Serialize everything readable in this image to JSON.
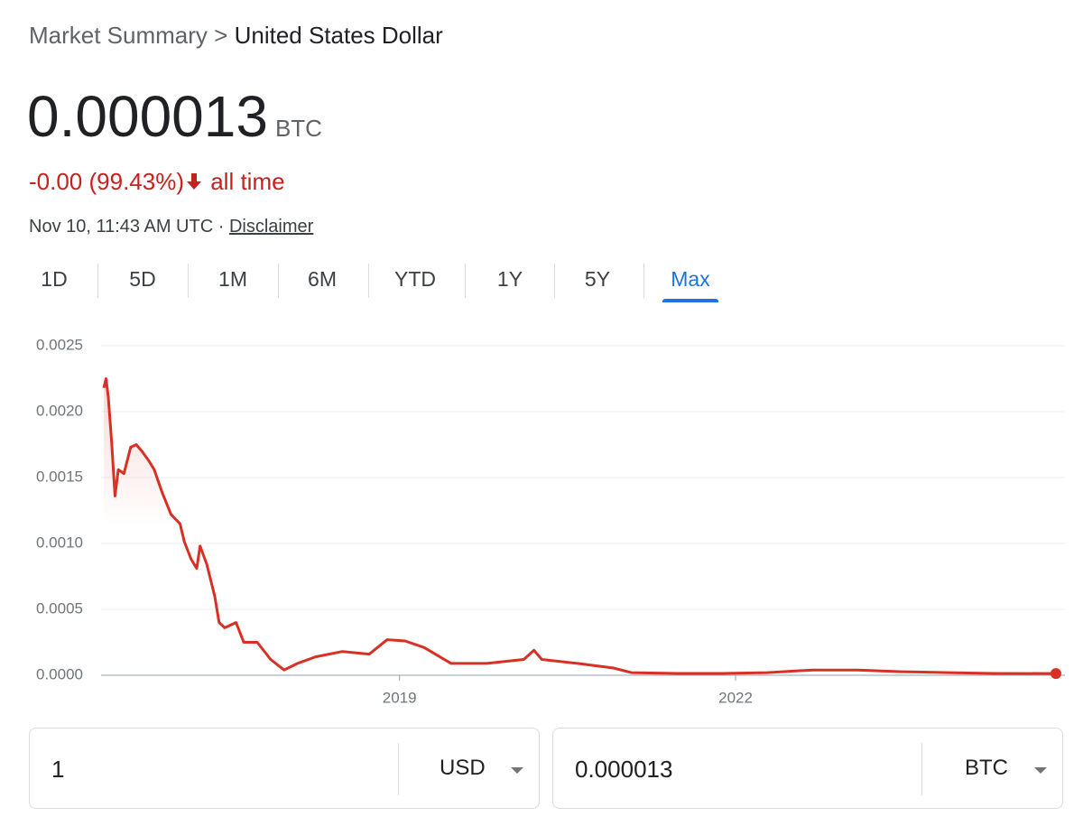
{
  "header": {
    "breadcrumb": [
      "Market Summary",
      "United States Dollar"
    ],
    "separator": ">"
  },
  "price": {
    "value": "0.000013",
    "unit": "BTC"
  },
  "change": {
    "text": "-0.00 (99.43%)",
    "period": "all time"
  },
  "timestamp": {
    "text": "Nov 10, 11:43 AM UTC",
    "separator": "·",
    "link": "Disclaimer"
  },
  "tabs": {
    "items": [
      "1D",
      "5D",
      "1M",
      "6M",
      "YTD",
      "1Y",
      "5Y",
      "Max"
    ],
    "selected": 7
  },
  "chart_data": {
    "type": "line",
    "color": "#d93025",
    "grid": true,
    "x": [
      2016.36,
      2016.38,
      2016.4,
      2016.43,
      2016.46,
      2016.49,
      2016.54,
      2016.6,
      2016.65,
      2016.7,
      2016.76,
      2016.81,
      2016.88,
      2016.96,
      2017.04,
      2017.08,
      2017.14,
      2017.19,
      2017.22,
      2017.28,
      2017.35,
      2017.39,
      2017.44,
      2017.54,
      2017.61,
      2017.73,
      2017.85,
      2017.97,
      2018.09,
      2018.25,
      2018.49,
      2018.73,
      2018.89,
      2019.05,
      2019.22,
      2019.46,
      2019.78,
      2020.11,
      2020.2,
      2020.27,
      2020.59,
      2020.91,
      2021.07,
      2021.48,
      2021.88,
      2022.28,
      2022.69,
      2023.09,
      2023.49,
      2023.9,
      2024.3,
      2024.86
    ],
    "values": [
      0.00218,
      0.00225,
      0.00211,
      0.00177,
      0.00136,
      0.00156,
      0.00153,
      0.00173,
      0.00175,
      0.0017,
      0.00163,
      0.00156,
      0.00139,
      0.00122,
      0.00115,
      0.00101,
      0.00088,
      0.00081,
      0.00098,
      0.00084,
      0.0006,
      0.0004,
      0.00036,
      0.0004,
      0.00025,
      0.00025,
      0.00012,
      4e-05,
      9e-05,
      0.00014,
      0.00018,
      0.00016,
      0.00027,
      0.00026,
      0.00021,
      9e-05,
      9e-05,
      0.00012,
      0.00019,
      0.00012,
      9e-05,
      5.5e-05,
      2e-05,
      1.4e-05,
      1.4e-05,
      2e-05,
      4e-05,
      4e-05,
      2.7e-05,
      2e-05,
      1.4e-05,
      1.3e-05
    ],
    "xlim": [
      2016.36,
      2024.86
    ],
    "xticks": [
      2019,
      2022
    ],
    "ylim": [
      0,
      0.0025
    ],
    "yticks": [
      {
        "value": 0,
        "label": "0.0000"
      },
      {
        "value": 0.0005,
        "label": "0.0005"
      },
      {
        "value": 0.001,
        "label": "0.0010"
      },
      {
        "value": 0.0015,
        "label": "0.0015"
      },
      {
        "value": 0.002,
        "label": "0.0020"
      },
      {
        "value": 0.0025,
        "label": "0.0025"
      }
    ]
  },
  "converter": {
    "from": {
      "amount": "1",
      "currency": "USD"
    },
    "to": {
      "amount": "0.000013",
      "currency": "BTC"
    }
  }
}
